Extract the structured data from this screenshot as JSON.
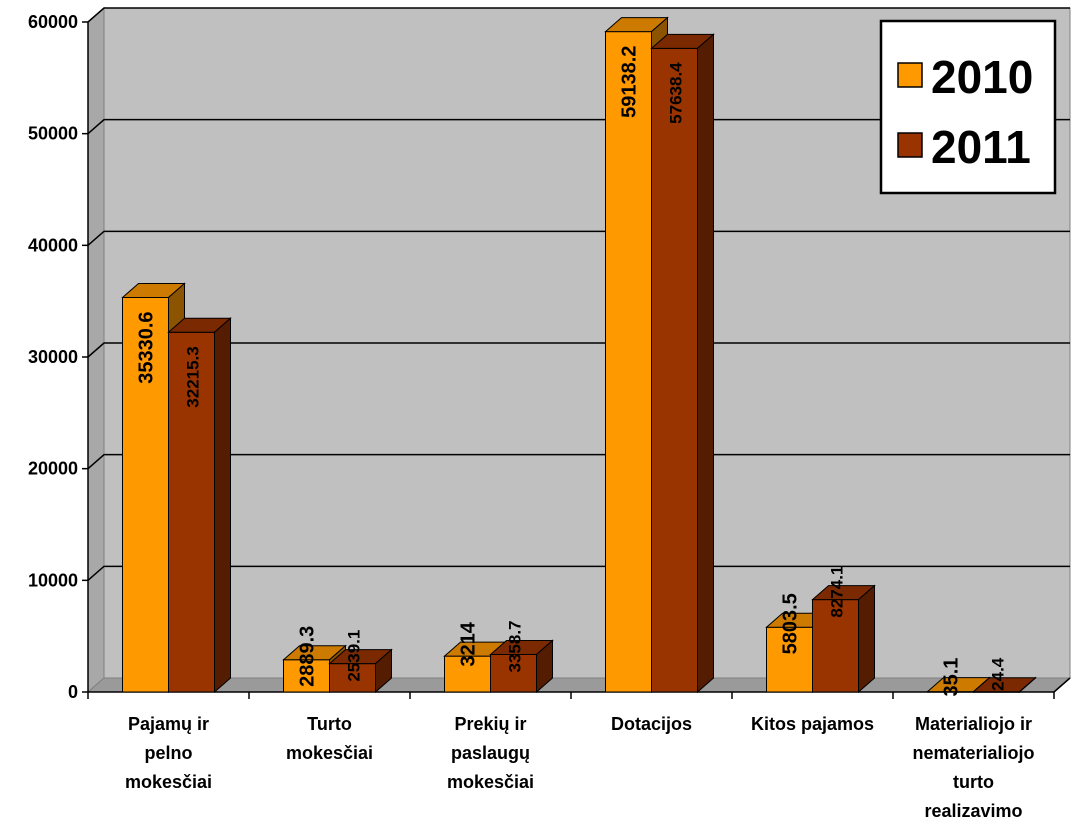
{
  "chart_data": {
    "type": "bar",
    "categories": [
      [
        "Pajamų ir",
        "pelno",
        "mokesčiai"
      ],
      [
        "Turto",
        "mokesčiai"
      ],
      [
        "Prekių ir",
        "paslaugų",
        "mokesčiai"
      ],
      [
        "Dotacijos"
      ],
      [
        "Kitos pajamos"
      ],
      [
        "Materialiojo ir",
        "nematerialiojo",
        "turto",
        "realizavimo"
      ]
    ],
    "series": [
      {
        "name": "2010",
        "values": [
          35330.6,
          2889.3,
          3214,
          59138.2,
          5803.5,
          35.1
        ],
        "labels": [
          "35330.6",
          "2889.3",
          "3214",
          "59138.2",
          "5803.5",
          "35.1"
        ],
        "color": "#FF9900"
      },
      {
        "name": "2011",
        "values": [
          32215.3,
          2539.1,
          3358.7,
          57638.4,
          8274.1,
          24.4
        ],
        "labels": [
          "32215.3",
          "2539.1",
          "3358.7",
          "57638.4",
          "8274.1",
          "24.4"
        ],
        "color": "#993300"
      }
    ],
    "y_ticks": [
      "0",
      "10000",
      "20000",
      "30000",
      "40000",
      "50000",
      "60000"
    ],
    "ylim": [
      0,
      60000
    ],
    "grid": true,
    "legend_position": "top-right",
    "wall_color": "#C0C0C0"
  }
}
